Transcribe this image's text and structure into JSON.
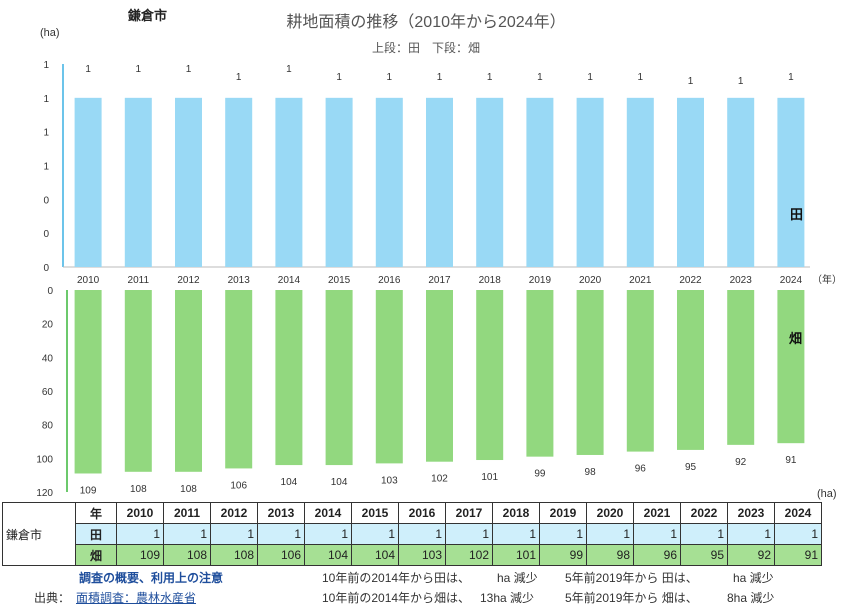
{
  "region": "鎌倉市",
  "title": "耕地面積の推移（2010年から2024年）",
  "subtitle": "上段：田　下段：畑",
  "chart_data": [
    {
      "type": "bar",
      "name": "田",
      "unit_label": "(ha)",
      "year_unit": "（年）",
      "categories": [
        "2010",
        "2011",
        "2012",
        "2013",
        "2014",
        "2015",
        "2016",
        "2017",
        "2018",
        "2019",
        "2020",
        "2021",
        "2022",
        "2023",
        "2024"
      ],
      "values": [
        1,
        1,
        1,
        1,
        1,
        1,
        1,
        1,
        1,
        1,
        1,
        1,
        1,
        1,
        1
      ],
      "data_labels": [
        "1",
        "1",
        "1",
        "1",
        "1",
        "1",
        "1",
        "1",
        "1",
        "1",
        "1",
        "1",
        "1",
        "1",
        "1"
      ],
      "ytick_labels": [
        "0",
        "0",
        "0",
        "1",
        "1",
        "1",
        "1"
      ],
      "color": "#99d9f5"
    },
    {
      "type": "bar",
      "name": "畑",
      "orientation": "downward",
      "unit_label": "(ha)",
      "categories": [
        "2010",
        "2011",
        "2012",
        "2013",
        "2014",
        "2015",
        "2016",
        "2017",
        "2018",
        "2019",
        "2020",
        "2021",
        "2022",
        "2023",
        "2024"
      ],
      "values": [
        109,
        108,
        108,
        106,
        104,
        104,
        103,
        102,
        101,
        99,
        98,
        96,
        95,
        92,
        91
      ],
      "ytick_labels": [
        "0",
        "20",
        "40",
        "60",
        "80",
        "100",
        "120"
      ],
      "ylim": [
        0,
        120
      ],
      "color": "#92d87f"
    }
  ],
  "table": {
    "region": "鎌倉市",
    "header_label": "年",
    "paddy_label": "田",
    "field_label": "畑",
    "years": [
      "2010",
      "2011",
      "2012",
      "2013",
      "2014",
      "2015",
      "2016",
      "2017",
      "2018",
      "2019",
      "2020",
      "2021",
      "2022",
      "2023",
      "2024"
    ],
    "paddy": [
      "1",
      "1",
      "1",
      "1",
      "1",
      "1",
      "1",
      "1",
      "1",
      "1",
      "1",
      "1",
      "1",
      "1",
      "1"
    ],
    "field": [
      "109",
      "108",
      "108",
      "106",
      "104",
      "104",
      "103",
      "102",
      "101",
      "99",
      "98",
      "96",
      "95",
      "92",
      "91"
    ]
  },
  "footer": {
    "notes_link": "調査の概要、利用上の注意",
    "source_label": "出典：",
    "source_link": "面積調査：農林水産省",
    "paddy_10y": "10年前の2014年から田は、",
    "paddy_10y_amount": "ha 減少",
    "paddy_5y": "5年前2019年から 田は、",
    "paddy_5y_amount": "ha 減少",
    "field_10y": "10年前の2014年から畑は、",
    "field_10y_amount": "13ha 減少",
    "field_5y": "5年前2019年から 畑は、",
    "field_5y_amount": "8ha 減少"
  }
}
